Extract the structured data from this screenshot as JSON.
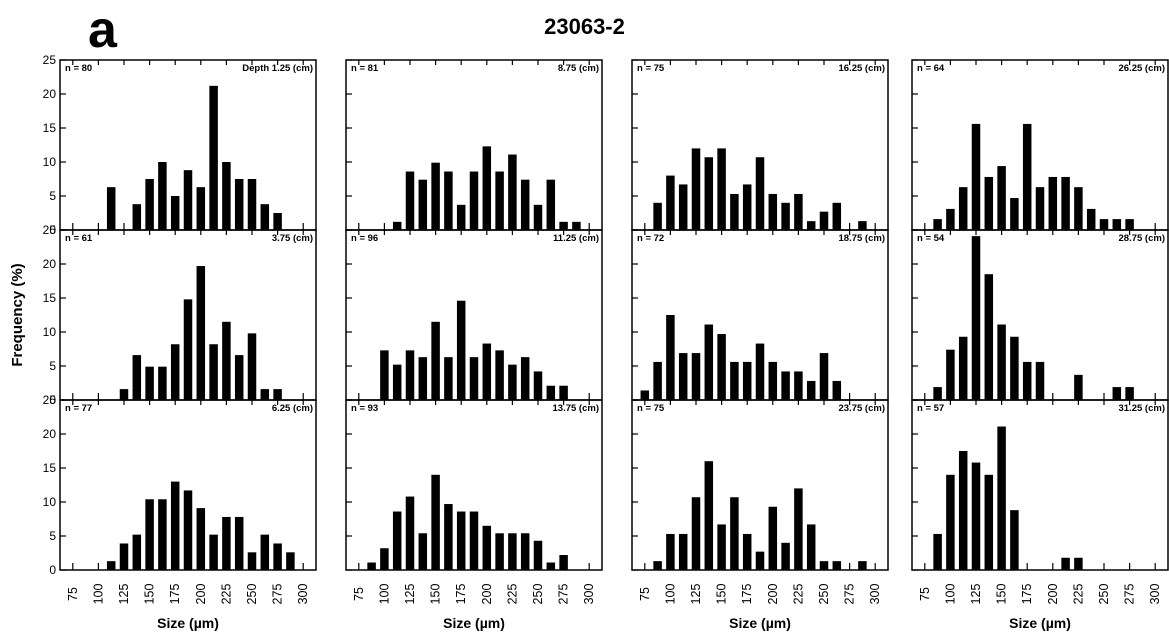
{
  "panel_letter": "a",
  "title": "23063-2",
  "ylabel": "Frequency (%)",
  "xlabel": "Size (µm)",
  "yticks": [
    0,
    5,
    10,
    15,
    20,
    25
  ],
  "xticks": [
    75,
    100,
    125,
    150,
    175,
    200,
    225,
    250,
    275,
    300
  ],
  "chart_data": [
    {
      "type": "bar",
      "n_label": "n = 80",
      "depth_label": "Depth 1.25 (cm)",
      "ylim": [
        0,
        25
      ],
      "xlim": [
        62.5,
        312.5
      ],
      "x": [
        112.5,
        137.5,
        150,
        162.5,
        175,
        187.5,
        200,
        212.5,
        225,
        237.5,
        250,
        262.5,
        275
      ],
      "values": [
        6.3,
        3.8,
        7.5,
        10,
        5,
        8.8,
        6.3,
        21.2,
        10,
        7.5,
        7.5,
        3.8,
        2.5
      ]
    },
    {
      "type": "bar",
      "n_label": "n = 81",
      "depth_label": "8.75 (cm)",
      "ylim": [
        0,
        25
      ],
      "xlim": [
        62.5,
        312.5
      ],
      "x": [
        112.5,
        125,
        137.5,
        150,
        162.5,
        175,
        187.5,
        200,
        212.5,
        225,
        237.5,
        250,
        262.5,
        275,
        287.5
      ],
      "values": [
        1.2,
        8.6,
        7.4,
        9.9,
        8.6,
        3.7,
        8.6,
        12.3,
        8.6,
        11.1,
        7.4,
        3.7,
        7.4,
        1.2,
        1.2
      ]
    },
    {
      "type": "bar",
      "n_label": "n = 75",
      "depth_label": "16.25 (cm)",
      "ylim": [
        0,
        25
      ],
      "xlim": [
        62.5,
        312.5
      ],
      "x": [
        87.5,
        100,
        112.5,
        125,
        137.5,
        150,
        162.5,
        175,
        187.5,
        200,
        212.5,
        225,
        237.5,
        250,
        262.5,
        287.5
      ],
      "values": [
        4,
        8,
        6.7,
        12,
        10.7,
        12,
        5.3,
        6.7,
        10.7,
        5.3,
        4,
        5.3,
        1.3,
        2.7,
        4,
        1.3
      ]
    },
    {
      "type": "bar",
      "n_label": "n = 64",
      "depth_label": "26.25 (cm)",
      "ylim": [
        0,
        25
      ],
      "xlim": [
        62.5,
        312.5
      ],
      "x": [
        87.5,
        100,
        112.5,
        125,
        137.5,
        150,
        162.5,
        175,
        187.5,
        200,
        212.5,
        225,
        237.5,
        250,
        262.5,
        275
      ],
      "values": [
        1.6,
        3.1,
        6.3,
        15.6,
        7.8,
        9.4,
        4.7,
        15.6,
        6.3,
        7.8,
        7.8,
        6.3,
        3.1,
        1.6,
        1.6,
        1.6
      ]
    },
    {
      "type": "bar",
      "n_label": "n = 61",
      "depth_label": "3.75 (cm)",
      "ylim": [
        0,
        25
      ],
      "xlim": [
        62.5,
        312.5
      ],
      "x": [
        125,
        137.5,
        150,
        162.5,
        175,
        187.5,
        200,
        212.5,
        225,
        237.5,
        250,
        262.5,
        275
      ],
      "values": [
        1.6,
        6.6,
        4.9,
        4.9,
        8.2,
        14.8,
        19.7,
        8.2,
        11.5,
        6.6,
        9.8,
        1.6,
        1.6
      ]
    },
    {
      "type": "bar",
      "n_label": "n = 96",
      "depth_label": "11.25 (cm)",
      "ylim": [
        0,
        25
      ],
      "xlim": [
        62.5,
        312.5
      ],
      "x": [
        100,
        112.5,
        125,
        137.5,
        150,
        162.5,
        175,
        187.5,
        200,
        212.5,
        225,
        237.5,
        250,
        262.5,
        275
      ],
      "values": [
        7.3,
        5.2,
        7.3,
        6.3,
        11.5,
        6.3,
        14.6,
        6.3,
        8.3,
        7.3,
        5.2,
        6.3,
        4.2,
        2.1,
        2.1
      ]
    },
    {
      "type": "bar",
      "n_label": "n = 72",
      "depth_label": "18.75 (cm)",
      "ylim": [
        0,
        25
      ],
      "xlim": [
        62.5,
        312.5
      ],
      "x": [
        75,
        87.5,
        100,
        112.5,
        125,
        137.5,
        150,
        162.5,
        175,
        187.5,
        200,
        212.5,
        225,
        237.5,
        250,
        262.5
      ],
      "values": [
        1.4,
        5.6,
        12.5,
        6.9,
        6.9,
        11.1,
        9.7,
        5.6,
        5.6,
        8.3,
        5.6,
        4.2,
        4.2,
        2.8,
        6.9,
        2.8
      ]
    },
    {
      "type": "bar",
      "n_label": "n = 54",
      "depth_label": "28.75 (cm)",
      "ylim": [
        0,
        25
      ],
      "xlim": [
        62.5,
        312.5
      ],
      "x": [
        87.5,
        100,
        112.5,
        125,
        137.5,
        150,
        162.5,
        175,
        187.5,
        225,
        262.5,
        275
      ],
      "values": [
        1.9,
        7.4,
        9.3,
        24.1,
        18.5,
        11.1,
        9.3,
        5.6,
        5.6,
        3.7,
        1.9,
        1.9
      ]
    },
    {
      "type": "bar",
      "n_label": "n = 77",
      "depth_label": "6.25 (cm)",
      "ylim": [
        0,
        25
      ],
      "xlim": [
        62.5,
        312.5
      ],
      "x": [
        112.5,
        125,
        137.5,
        150,
        162.5,
        175,
        187.5,
        200,
        212.5,
        225,
        237.5,
        250,
        262.5,
        275,
        287.5
      ],
      "values": [
        1.3,
        3.9,
        5.2,
        10.4,
        10.4,
        13,
        11.7,
        9.1,
        5.2,
        7.8,
        7.8,
        2.6,
        5.2,
        3.9,
        2.6
      ]
    },
    {
      "type": "bar",
      "n_label": "n = 93",
      "depth_label": "13.75 (cm)",
      "ylim": [
        0,
        25
      ],
      "xlim": [
        62.5,
        312.5
      ],
      "x": [
        87.5,
        100,
        112.5,
        125,
        137.5,
        150,
        162.5,
        175,
        187.5,
        200,
        212.5,
        225,
        237.5,
        250,
        262.5,
        275
      ],
      "values": [
        1.1,
        3.2,
        8.6,
        10.8,
        5.4,
        14,
        9.7,
        8.6,
        8.6,
        6.5,
        5.4,
        5.4,
        5.4,
        4.3,
        1.1,
        2.2
      ]
    },
    {
      "type": "bar",
      "n_label": "n = 75",
      "depth_label": "23.75 (cm)",
      "ylim": [
        0,
        25
      ],
      "xlim": [
        62.5,
        312.5
      ],
      "x": [
        87.5,
        100,
        112.5,
        125,
        137.5,
        150,
        162.5,
        175,
        187.5,
        200,
        212.5,
        225,
        237.5,
        250,
        262.5,
        287.5
      ],
      "values": [
        1.3,
        5.3,
        5.3,
        10.7,
        16,
        6.7,
        10.7,
        5.3,
        2.7,
        9.3,
        4,
        12,
        6.7,
        1.3,
        1.3,
        1.3
      ]
    },
    {
      "type": "bar",
      "n_label": "n = 57",
      "depth_label": "31.25 (cm)",
      "ylim": [
        0,
        25
      ],
      "xlim": [
        62.5,
        312.5
      ],
      "x": [
        87.5,
        100,
        112.5,
        125,
        137.5,
        150,
        162.5,
        212.5,
        225
      ],
      "values": [
        5.3,
        14,
        17.5,
        15.8,
        14,
        21.1,
        8.8,
        1.8,
        1.8
      ]
    }
  ]
}
